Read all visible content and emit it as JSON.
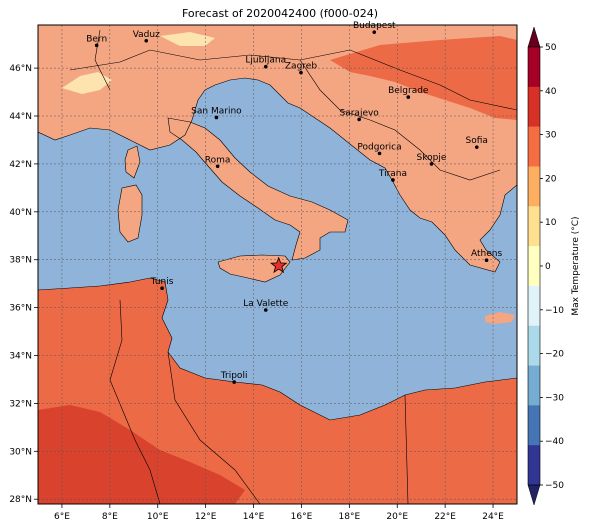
{
  "title": "Forecast of 2020042400 (f000-024)",
  "colorbar": {
    "label": "Max Temperature (°C)",
    "ticks": [
      "50",
      "40",
      "30",
      "20",
      "10",
      "0",
      "−10",
      "−20",
      "−30",
      "−40",
      "−50"
    ],
    "colors": [
      "#67001f",
      "#b2182b",
      "#d6604d",
      "#f4a582",
      "#fddbc7",
      "#d1e5f0",
      "#92c5de",
      "#4393c3",
      "#2166ac",
      "#053061"
    ],
    "band_colors": [
      "#67001f",
      "#a50026",
      "#d73027",
      "#f46d43",
      "#fdae61",
      "#fee090",
      "#ffffbf",
      "#e0f3f8",
      "#abd9e9",
      "#74add1",
      "#4575b4",
      "#313695",
      "#222266"
    ]
  },
  "map": {
    "lon_ticks": [
      "6°E",
      "8°E",
      "10°E",
      "12°E",
      "14°E",
      "16°E",
      "18°E",
      "20°E",
      "22°E",
      "24°E"
    ],
    "lat_ticks": [
      "46°N",
      "44°N",
      "42°N",
      "40°N",
      "38°N",
      "36°N",
      "34°N",
      "32°N",
      "30°N",
      "28°N"
    ],
    "sea_color": "#8fb3d9",
    "land_color": "#f4a582",
    "hot_color": "#ec6a45",
    "hotter_color": "#d9432e",
    "cool_color": "#fde3b0",
    "cities": [
      {
        "name": "Bern",
        "lon": 7.45,
        "lat": 46.95
      },
      {
        "name": "Vaduz",
        "lon": 9.52,
        "lat": 47.14
      },
      {
        "name": "Budapest",
        "lon": 19.04,
        "lat": 47.5
      },
      {
        "name": "Ljubljana",
        "lon": 14.51,
        "lat": 46.06
      },
      {
        "name": "Zagreb",
        "lon": 15.98,
        "lat": 45.81
      },
      {
        "name": "Belgrade",
        "lon": 20.46,
        "lat": 44.79
      },
      {
        "name": "San Marino",
        "lon": 12.45,
        "lat": 43.94
      },
      {
        "name": "Sarajevo",
        "lon": 18.41,
        "lat": 43.86
      },
      {
        "name": "Sofia",
        "lon": 23.32,
        "lat": 42.7
      },
      {
        "name": "Podgorica",
        "lon": 19.26,
        "lat": 42.44
      },
      {
        "name": "Skopje",
        "lon": 21.43,
        "lat": 42.0
      },
      {
        "name": "Roma",
        "lon": 12.5,
        "lat": 41.9
      },
      {
        "name": "Tirana",
        "lon": 19.82,
        "lat": 41.33
      },
      {
        "name": "Athens",
        "lon": 23.73,
        "lat": 37.98
      },
      {
        "name": "Tunis",
        "lon": 10.18,
        "lat": 36.81
      },
      {
        "name": "La Valette",
        "lon": 14.51,
        "lat": 35.9
      },
      {
        "name": "Tripoli",
        "lon": 13.19,
        "lat": 32.89
      }
    ],
    "star": {
      "lon": 15.05,
      "lat": 37.75,
      "color": "#e8302a"
    }
  }
}
